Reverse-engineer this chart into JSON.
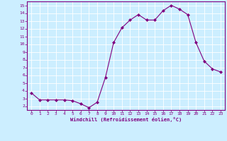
{
  "x": [
    0,
    1,
    2,
    3,
    4,
    5,
    6,
    7,
    8,
    9,
    10,
    11,
    12,
    13,
    14,
    15,
    16,
    17,
    18,
    19,
    20,
    21,
    22,
    23
  ],
  "y": [
    3.7,
    2.8,
    2.8,
    2.8,
    2.8,
    2.7,
    2.3,
    1.8,
    2.5,
    5.7,
    10.2,
    12.1,
    13.1,
    13.8,
    13.1,
    13.1,
    14.3,
    15.0,
    14.5,
    13.8,
    10.2,
    7.8,
    6.8,
    6.4
  ],
  "line_color": "#800080",
  "marker": "D",
  "marker_size": 2,
  "bg_color": "#cceeff",
  "grid_color": "#aadddd",
  "xlabel": "Windchill (Refroidissement éolien,°C)",
  "ylim": [
    1.5,
    15.5
  ],
  "xlim": [
    -0.5,
    23.5
  ],
  "yticks": [
    2,
    3,
    4,
    5,
    6,
    7,
    8,
    9,
    10,
    11,
    12,
    13,
    14,
    15
  ],
  "xticks": [
    0,
    1,
    2,
    3,
    4,
    5,
    6,
    7,
    8,
    9,
    10,
    11,
    12,
    13,
    14,
    15,
    16,
    17,
    18,
    19,
    20,
    21,
    22,
    23
  ],
  "tick_color": "#800080",
  "label_color": "#800080",
  "spine_color": "#800080",
  "font": "monospace"
}
